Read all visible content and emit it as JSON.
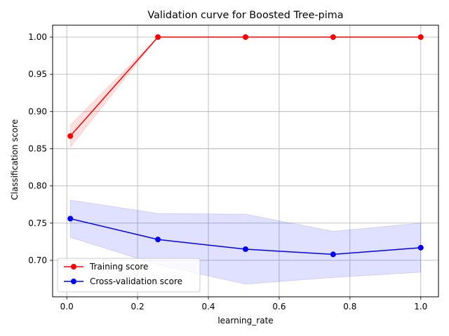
{
  "chart_data": {
    "type": "line",
    "title": "Validation curve for Boosted Tree-pima",
    "xlabel": "learning_rate",
    "ylabel": "Classification score",
    "xlim": [
      -0.04,
      1.05
    ],
    "ylim": [
      0.651,
      1.016
    ],
    "xticks": [
      0.0,
      0.2,
      0.4,
      0.6,
      0.8,
      1.0
    ],
    "xtick_labels": [
      "0.0",
      "0.2",
      "0.4",
      "0.6",
      "0.8",
      "1.0"
    ],
    "yticks": [
      0.7,
      0.75,
      0.8,
      0.85,
      0.9,
      0.95,
      1.0
    ],
    "ytick_labels": [
      "0.70",
      "0.75",
      "0.80",
      "0.85",
      "0.90",
      "0.95",
      "1.00"
    ],
    "grid": true,
    "legend_position": "lower-left",
    "x": [
      0.01,
      0.2575,
      0.505,
      0.7525,
      1.0
    ],
    "series": [
      {
        "name": "Training score",
        "color": "#ff0000",
        "band_color": "#ff0000",
        "values": [
          0.867,
          1.0,
          1.0,
          1.0,
          1.0
        ],
        "lower": [
          0.852,
          1.0,
          1.0,
          1.0,
          1.0
        ],
        "upper": [
          0.882,
          1.0,
          1.0,
          1.0,
          1.0
        ]
      },
      {
        "name": "Cross-validation score",
        "color": "#0000ff",
        "band_color": "#0000ff",
        "values": [
          0.756,
          0.728,
          0.715,
          0.708,
          0.717
        ],
        "lower": [
          0.731,
          0.694,
          0.668,
          0.677,
          0.684
        ],
        "upper": [
          0.781,
          0.763,
          0.762,
          0.739,
          0.75
        ]
      }
    ]
  }
}
